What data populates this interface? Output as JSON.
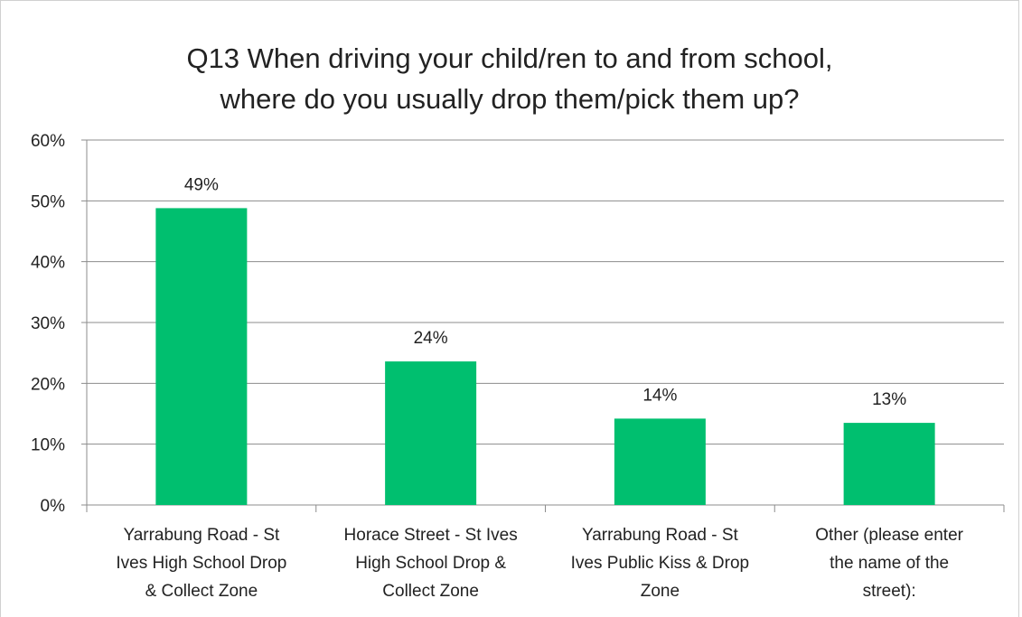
{
  "chart_data": {
    "type": "bar",
    "title_lines": [
      "Q13 When driving your child/ren to and from school,",
      "where do you usually drop them/pick them up?"
    ],
    "categories": [
      [
        "Yarrabung Road - St",
        "Ives High School Drop",
        "& Collect Zone"
      ],
      [
        "Horace Street - St Ives",
        "High School Drop &",
        "Collect Zone"
      ],
      [
        "Yarrabung Road - St",
        "Ives Public Kiss & Drop",
        "Zone"
      ],
      [
        "Other (please enter",
        "the name of the",
        "street):"
      ]
    ],
    "values": [
      48.8,
      23.6,
      14.2,
      13.5
    ],
    "data_labels": [
      "49%",
      "24%",
      "14%",
      "13%"
    ],
    "ylim": [
      0,
      60
    ],
    "yticks": [
      0,
      10,
      20,
      30,
      40,
      50,
      60
    ],
    "ytick_labels": [
      "0%",
      "10%",
      "20%",
      "30%",
      "40%",
      "50%",
      "60%"
    ],
    "grid": true,
    "bar_color": "#00BF6F",
    "gridline_color": "#8c8c8c"
  }
}
